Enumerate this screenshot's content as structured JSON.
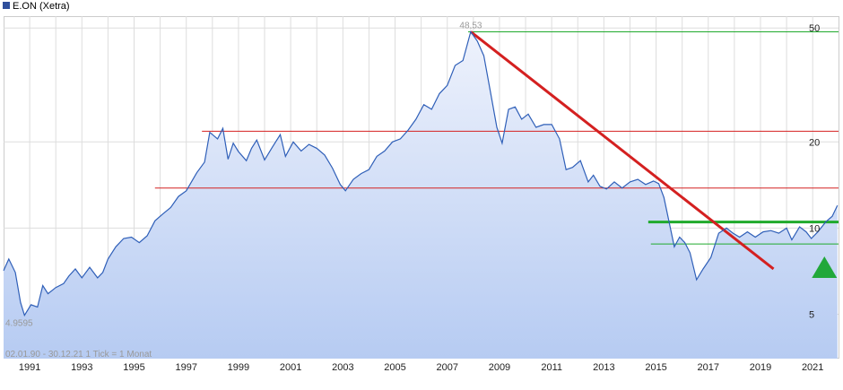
{
  "chart_data": {
    "type": "line",
    "title": "E.ON (Xetra)",
    "scale": "log",
    "ylim": [
      3.5,
      55
    ],
    "xlim": [
      1990.0,
      2021.99
    ],
    "x_ticks": [
      "1991",
      "1993",
      "1995",
      "1997",
      "1999",
      "2001",
      "2003",
      "2005",
      "2007",
      "2009",
      "2011",
      "2013",
      "2015",
      "2017",
      "2019",
      "2021"
    ],
    "y_ticks": [
      5,
      10,
      20,
      50
    ],
    "y_tick_labels": [
      "5",
      "10",
      "20",
      "50"
    ],
    "max_label": "48,53",
    "min_label": "4.9595",
    "footnote": "02.01.90 - 30.12.21   1 Tick = 1 Monat",
    "colors": {
      "line": "#2f5fb8",
      "fill_top": "#eef2fc",
      "fill_bottom": "#b6cbf2",
      "resistance": "#d42020",
      "trendline": "#d42020",
      "support": "#1faa2c",
      "arrow": "#21a83a",
      "grid": "#dddddd",
      "legend_square": "#2f4f9c"
    },
    "series": [
      {
        "name": "E.ON (Xetra)",
        "points": [
          [
            1990.0,
            7.1
          ],
          [
            1990.2,
            7.8
          ],
          [
            1990.45,
            7.0
          ],
          [
            1990.65,
            5.5
          ],
          [
            1990.8,
            4.96
          ],
          [
            1991.05,
            5.4
          ],
          [
            1991.3,
            5.3
          ],
          [
            1991.5,
            6.3
          ],
          [
            1991.7,
            5.9
          ],
          [
            1992.0,
            6.2
          ],
          [
            1992.3,
            6.4
          ],
          [
            1992.5,
            6.8
          ],
          [
            1992.75,
            7.2
          ],
          [
            1993.0,
            6.7
          ],
          [
            1993.3,
            7.3
          ],
          [
            1993.6,
            6.7
          ],
          [
            1993.8,
            7.0
          ],
          [
            1994.0,
            7.8
          ],
          [
            1994.3,
            8.6
          ],
          [
            1994.6,
            9.2
          ],
          [
            1994.9,
            9.3
          ],
          [
            1995.2,
            8.9
          ],
          [
            1995.5,
            9.4
          ],
          [
            1995.8,
            10.6
          ],
          [
            1996.1,
            11.2
          ],
          [
            1996.4,
            11.8
          ],
          [
            1996.7,
            12.9
          ],
          [
            1997.0,
            13.5
          ],
          [
            1997.4,
            15.6
          ],
          [
            1997.7,
            17.0
          ],
          [
            1997.9,
            21.6
          ],
          [
            1998.2,
            20.5
          ],
          [
            1998.4,
            22.3
          ],
          [
            1998.6,
            17.4
          ],
          [
            1998.8,
            19.8
          ],
          [
            1999.0,
            18.5
          ],
          [
            1999.3,
            17.2
          ],
          [
            1999.5,
            19.0
          ],
          [
            1999.7,
            20.3
          ],
          [
            2000.0,
            17.3
          ],
          [
            2000.3,
            19.2
          ],
          [
            2000.6,
            21.2
          ],
          [
            2000.8,
            17.8
          ],
          [
            2001.1,
            20.0
          ],
          [
            2001.4,
            18.6
          ],
          [
            2001.7,
            19.6
          ],
          [
            2002.0,
            19.0
          ],
          [
            2002.3,
            18.0
          ],
          [
            2002.6,
            16.2
          ],
          [
            2002.9,
            14.2
          ],
          [
            2003.1,
            13.5
          ],
          [
            2003.4,
            14.8
          ],
          [
            2003.7,
            15.5
          ],
          [
            2004.0,
            16.0
          ],
          [
            2004.3,
            17.8
          ],
          [
            2004.6,
            18.6
          ],
          [
            2004.9,
            20.0
          ],
          [
            2005.2,
            20.5
          ],
          [
            2005.5,
            22.0
          ],
          [
            2005.8,
            24.0
          ],
          [
            2006.1,
            27.0
          ],
          [
            2006.4,
            26.0
          ],
          [
            2006.7,
            29.5
          ],
          [
            2007.0,
            31.5
          ],
          [
            2007.3,
            37.0
          ],
          [
            2007.6,
            38.5
          ],
          [
            2007.9,
            48.53
          ],
          [
            2008.15,
            45.0
          ],
          [
            2008.4,
            40.0
          ],
          [
            2008.65,
            30.0
          ],
          [
            2008.9,
            22.5
          ],
          [
            2009.1,
            19.8
          ],
          [
            2009.35,
            26.0
          ],
          [
            2009.6,
            26.5
          ],
          [
            2009.85,
            24.0
          ],
          [
            2010.1,
            25.0
          ],
          [
            2010.4,
            22.5
          ],
          [
            2010.7,
            23.0
          ],
          [
            2011.0,
            23.0
          ],
          [
            2011.3,
            20.5
          ],
          [
            2011.55,
            16.0
          ],
          [
            2011.8,
            16.3
          ],
          [
            2012.1,
            17.2
          ],
          [
            2012.4,
            14.5
          ],
          [
            2012.6,
            15.3
          ],
          [
            2012.85,
            14.0
          ],
          [
            2013.1,
            13.7
          ],
          [
            2013.4,
            14.5
          ],
          [
            2013.7,
            13.8
          ],
          [
            2014.0,
            14.5
          ],
          [
            2014.3,
            14.8
          ],
          [
            2014.6,
            14.2
          ],
          [
            2014.9,
            14.6
          ],
          [
            2015.1,
            14.3
          ],
          [
            2015.3,
            12.8
          ],
          [
            2015.5,
            10.5
          ],
          [
            2015.7,
            8.6
          ],
          [
            2015.9,
            9.3
          ],
          [
            2016.1,
            8.9
          ],
          [
            2016.3,
            8.2
          ],
          [
            2016.55,
            6.6
          ],
          [
            2016.8,
            7.2
          ],
          [
            2017.1,
            7.9
          ],
          [
            2017.4,
            9.6
          ],
          [
            2017.7,
            10.0
          ],
          [
            2017.95,
            9.6
          ],
          [
            2018.2,
            9.3
          ],
          [
            2018.5,
            9.7
          ],
          [
            2018.8,
            9.3
          ],
          [
            2019.1,
            9.7
          ],
          [
            2019.4,
            9.8
          ],
          [
            2019.7,
            9.6
          ],
          [
            2020.0,
            10.0
          ],
          [
            2020.2,
            9.1
          ],
          [
            2020.5,
            10.1
          ],
          [
            2020.75,
            9.7
          ],
          [
            2020.95,
            9.2
          ],
          [
            2021.2,
            9.7
          ],
          [
            2021.5,
            10.5
          ],
          [
            2021.75,
            11.0
          ],
          [
            2021.95,
            12.0
          ]
        ]
      }
    ],
    "horizontal_lines": [
      {
        "kind": "resistance",
        "y": 21.8,
        "x_start": 1997.6,
        "x_end": 2021.99
      },
      {
        "kind": "resistance",
        "y": 13.8,
        "x_start": 1995.8,
        "x_end": 2021.99
      },
      {
        "kind": "support",
        "y": 48.5,
        "x_start": 2007.8,
        "x_end": 2021.99
      },
      {
        "kind": "support",
        "y": 8.8,
        "x_start": 2014.8,
        "x_end": 2021.99
      },
      {
        "kind": "support_bold",
        "y": 10.5,
        "x_start": 2014.7,
        "x_end": 2021.99
      }
    ],
    "trendline": {
      "x1": 2007.9,
      "y1": 48.5,
      "x2": 2019.5,
      "y2": 7.2
    },
    "marker": {
      "type": "up-arrow",
      "x": 2021.45,
      "y": 6.7
    }
  }
}
